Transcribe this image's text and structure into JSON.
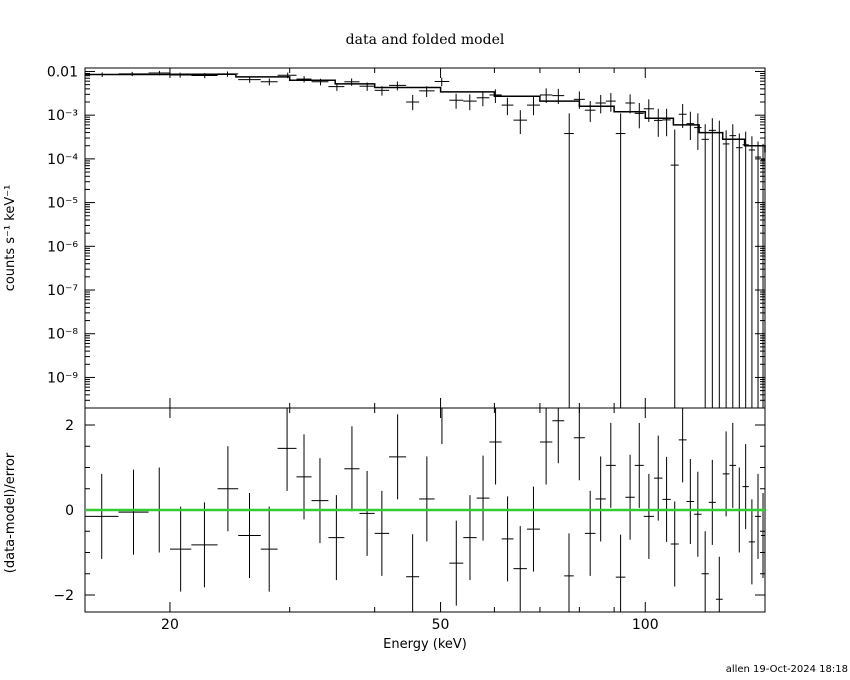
{
  "chart_data": [
    {
      "type": "scatter",
      "panel": "spectrum",
      "title": "data and folded model",
      "ylabel": "counts s⁻¹ keV⁻¹",
      "xlabel": "",
      "xscale": "log",
      "yscale": "log",
      "xlim": [
        15,
        150
      ],
      "ylim": [
        2e-10,
        0.012
      ],
      "y_ticks": [
        {
          "value": 0.01,
          "label": "0.01"
        },
        {
          "value": 0.001,
          "label": "10⁻³"
        },
        {
          "value": 0.0001,
          "label": "10⁻⁴"
        },
        {
          "value": 1e-05,
          "label": "10⁻⁵"
        },
        {
          "value": 1e-06,
          "label": "10⁻⁶"
        },
        {
          "value": 1e-07,
          "label": "10⁻⁷"
        },
        {
          "value": 1e-08,
          "label": "10⁻⁸"
        },
        {
          "value": 1e-09,
          "label": "10⁻⁹"
        }
      ],
      "series": [
        {
          "color": "#000000",
          "style": "crosses",
          "points": [
            {
              "x": 15.9,
              "xlo": 15.0,
              "xhi": 16.8,
              "y": 0.0085,
              "ylo": 0.0075,
              "yhi": 0.0095
            },
            {
              "x": 17.6,
              "xlo": 16.8,
              "xhi": 18.6,
              "y": 0.0088,
              "ylo": 0.0078,
              "yhi": 0.0098
            },
            {
              "x": 19.3,
              "xlo": 18.6,
              "xhi": 20.0,
              "y": 0.0092,
              "ylo": 0.0081,
              "yhi": 0.0103
            },
            {
              "x": 20.7,
              "xlo": 20.0,
              "xhi": 21.5,
              "y": 0.0083,
              "ylo": 0.0072,
              "yhi": 0.0094
            },
            {
              "x": 22.5,
              "xlo": 21.5,
              "xhi": 23.5,
              "y": 0.0081,
              "ylo": 0.007,
              "yhi": 0.0092
            },
            {
              "x": 24.3,
              "xlo": 23.5,
              "xhi": 25.2,
              "y": 0.0088,
              "ylo": 0.0076,
              "yhi": 0.01
            },
            {
              "x": 26.2,
              "xlo": 25.2,
              "xhi": 27.2,
              "y": 0.0065,
              "ylo": 0.0055,
              "yhi": 0.0076
            },
            {
              "x": 28.0,
              "xlo": 27.2,
              "xhi": 28.8,
              "y": 0.0058,
              "ylo": 0.0048,
              "yhi": 0.0069
            },
            {
              "x": 29.8,
              "xlo": 28.8,
              "xhi": 30.7,
              "y": 0.0082,
              "ylo": 0.007,
              "yhi": 0.0094
            },
            {
              "x": 31.5,
              "xlo": 30.7,
              "xhi": 32.3,
              "y": 0.0067,
              "ylo": 0.0056,
              "yhi": 0.0078
            },
            {
              "x": 33.3,
              "xlo": 32.3,
              "xhi": 34.2,
              "y": 0.0058,
              "ylo": 0.0048,
              "yhi": 0.0068
            },
            {
              "x": 35.2,
              "xlo": 34.2,
              "xhi": 36.1,
              "y": 0.0045,
              "ylo": 0.0036,
              "yhi": 0.0054
            },
            {
              "x": 37.0,
              "xlo": 36.1,
              "xhi": 38.0,
              "y": 0.0058,
              "ylo": 0.0047,
              "yhi": 0.0069
            },
            {
              "x": 39.0,
              "xlo": 38.0,
              "xhi": 40.0,
              "y": 0.0046,
              "ylo": 0.0036,
              "yhi": 0.0056
            },
            {
              "x": 41.0,
              "xlo": 40.0,
              "xhi": 42.0,
              "y": 0.0037,
              "ylo": 0.0028,
              "yhi": 0.0046
            },
            {
              "x": 43.2,
              "xlo": 42.0,
              "xhi": 44.5,
              "y": 0.0048,
              "ylo": 0.0037,
              "yhi": 0.0059
            },
            {
              "x": 45.5,
              "xlo": 44.5,
              "xhi": 46.5,
              "y": 0.002,
              "ylo": 0.0013,
              "yhi": 0.0029
            },
            {
              "x": 47.7,
              "xlo": 46.5,
              "xhi": 49.0,
              "y": 0.0036,
              "ylo": 0.0026,
              "yhi": 0.0046
            },
            {
              "x": 50.2,
              "xlo": 49.0,
              "xhi": 51.5,
              "y": 0.0059,
              "ylo": 0.0046,
              "yhi": 0.0072
            },
            {
              "x": 52.7,
              "xlo": 51.5,
              "xhi": 54.0,
              "y": 0.0022,
              "ylo": 0.0014,
              "yhi": 0.0031
            },
            {
              "x": 55.2,
              "xlo": 54.0,
              "xhi": 56.5,
              "y": 0.0021,
              "ylo": 0.0013,
              "yhi": 0.003
            },
            {
              "x": 57.7,
              "xlo": 56.5,
              "xhi": 59.0,
              "y": 0.0025,
              "ylo": 0.0016,
              "yhi": 0.0035
            },
            {
              "x": 60.2,
              "xlo": 59.0,
              "xhi": 61.5,
              "y": 0.0029,
              "ylo": 0.0019,
              "yhi": 0.0039
            },
            {
              "x": 62.7,
              "xlo": 61.5,
              "xhi": 64.0,
              "y": 0.0017,
              "ylo": 0.001,
              "yhi": 0.0025
            },
            {
              "x": 65.5,
              "xlo": 64.0,
              "xhi": 67.0,
              "y": 0.00077,
              "ylo": 0.00037,
              "yhi": 0.0013
            },
            {
              "x": 68.5,
              "xlo": 67.0,
              "xhi": 70.0,
              "y": 0.0017,
              "ylo": 0.001,
              "yhi": 0.0026
            },
            {
              "x": 71.5,
              "xlo": 70.0,
              "xhi": 73.0,
              "y": 0.0029,
              "ylo": 0.0019,
              "yhi": 0.0041
            },
            {
              "x": 74.5,
              "xlo": 73.0,
              "xhi": 76.0,
              "y": 0.0028,
              "ylo": 0.0018,
              "yhi": 0.004
            },
            {
              "x": 77.3,
              "xlo": 76.0,
              "xhi": 78.5,
              "y": 0.00038,
              "ylo": 2e-10,
              "yhi": 0.0011
            },
            {
              "x": 80.0,
              "xlo": 78.5,
              "xhi": 81.5,
              "y": 0.0023,
              "ylo": 0.0014,
              "yhi": 0.0035
            },
            {
              "x": 83.0,
              "xlo": 81.5,
              "xhi": 84.5,
              "y": 0.0013,
              "ylo": 0.0007,
              "yhi": 0.0021
            },
            {
              "x": 86.0,
              "xlo": 84.5,
              "xhi": 87.5,
              "y": 0.0019,
              "ylo": 0.0011,
              "yhi": 0.0029
            },
            {
              "x": 89.0,
              "xlo": 87.5,
              "xhi": 90.5,
              "y": 0.0021,
              "ylo": 0.0012,
              "yhi": 0.0032
            },
            {
              "x": 92.0,
              "xlo": 90.5,
              "xhi": 93.5,
              "y": 0.00038,
              "ylo": 2e-10,
              "yhi": 0.0011
            },
            {
              "x": 95.0,
              "xlo": 93.5,
              "xhi": 96.5,
              "y": 0.0019,
              "ylo": 0.0011,
              "yhi": 0.003
            },
            {
              "x": 98.0,
              "xlo": 96.5,
              "xhi": 99.5,
              "y": 0.0011,
              "ylo": 0.0005,
              "yhi": 0.0019
            },
            {
              "x": 101.2,
              "xlo": 99.5,
              "xhi": 103.0,
              "y": 0.0014,
              "ylo": 0.0007,
              "yhi": 0.0023
            },
            {
              "x": 104.5,
              "xlo": 103.0,
              "xhi": 106.0,
              "y": 0.00076,
              "ylo": 0.00032,
              "yhi": 0.0014
            },
            {
              "x": 107.5,
              "xlo": 106.0,
              "xhi": 109.0,
              "y": 0.00078,
              "ylo": 0.00033,
              "yhi": 0.0014
            },
            {
              "x": 110.5,
              "xlo": 109.0,
              "xhi": 112.0,
              "y": 7.2e-05,
              "ylo": 2e-10,
              "yhi": 0.00047
            },
            {
              "x": 113.5,
              "xlo": 112.0,
              "xhi": 115.0,
              "y": 0.00105,
              "ylo": 0.00051,
              "yhi": 0.0018
            },
            {
              "x": 116.5,
              "xlo": 115.0,
              "xhi": 118.0,
              "y": 0.00064,
              "ylo": 0.00027,
              "yhi": 0.0012
            },
            {
              "x": 119.5,
              "xlo": 118.0,
              "xhi": 121.0,
              "y": 0.00052,
              "ylo": 0.00016,
              "yhi": 0.0011
            },
            {
              "x": 122.5,
              "xlo": 121.0,
              "xhi": 124.0,
              "y": 0.00028,
              "ylo": 2e-10,
              "yhi": 0.00062
            },
            {
              "x": 125.5,
              "xlo": 124.0,
              "xhi": 127.0,
              "y": 0.00045,
              "ylo": 2e-10,
              "yhi": 0.00085
            },
            {
              "x": 128.5,
              "xlo": 127.0,
              "xhi": 130.0,
              "y": 0.0004,
              "ylo": 2e-10,
              "yhi": 0.00075
            },
            {
              "x": 131.5,
              "xlo": 130.0,
              "xhi": 133.0,
              "y": 0.00022,
              "ylo": 2e-10,
              "yhi": 0.00045
            },
            {
              "x": 134.5,
              "xlo": 133.0,
              "xhi": 136.0,
              "y": 0.00034,
              "ylo": 2e-10,
              "yhi": 0.00062
            },
            {
              "x": 137.5,
              "xlo": 136.0,
              "xhi": 139.0,
              "y": 0.00018,
              "ylo": 2e-10,
              "yhi": 0.00038
            },
            {
              "x": 140.5,
              "xlo": 139.0,
              "xhi": 142.0,
              "y": 0.00021,
              "ylo": 2e-10,
              "yhi": 0.00042
            },
            {
              "x": 143.5,
              "xlo": 142.0,
              "xhi": 145.0,
              "y": 0.00016,
              "ylo": 2e-10,
              "yhi": 0.00033
            },
            {
              "x": 146.5,
              "xlo": 145.0,
              "xhi": 148.0,
              "y": 0.00011,
              "ylo": 2e-10,
              "yhi": 0.00025
            },
            {
              "x": 149.0,
              "xlo": 148.0,
              "xhi": 150.0,
              "y": 9.5e-05,
              "ylo": 2e-10,
              "yhi": 0.00022
            }
          ]
        },
        {
          "color": "#000000",
          "style": "step",
          "points": [
            {
              "x": 15.0,
              "y": 0.0085
            },
            {
              "x": 20.0,
              "y": 0.0086
            },
            {
              "x": 25.0,
              "y": 0.0075
            },
            {
              "x": 30.0,
              "y": 0.0063
            },
            {
              "x": 35.0,
              "y": 0.0052
            },
            {
              "x": 40.0,
              "y": 0.0043
            },
            {
              "x": 50.0,
              "y": 0.0034
            },
            {
              "x": 60.0,
              "y": 0.0027
            },
            {
              "x": 70.0,
              "y": 0.0021
            },
            {
              "x": 80.0,
              "y": 0.0016
            },
            {
              "x": 90.0,
              "y": 0.0012
            },
            {
              "x": 100.0,
              "y": 0.00085
            },
            {
              "x": 110.0,
              "y": 0.0006
            },
            {
              "x": 120.0,
              "y": 0.0004
            },
            {
              "x": 130.0,
              "y": 0.00028
            },
            {
              "x": 140.0,
              "y": 0.0002
            },
            {
              "x": 150.0,
              "y": 0.00014
            }
          ]
        }
      ]
    },
    {
      "type": "scatter",
      "panel": "residuals",
      "title": "",
      "xlabel": "Energy (keV)",
      "ylabel": "(data-model)/error",
      "xscale": "log",
      "yscale": "linear",
      "xlim": [
        15,
        150
      ],
      "ylim": [
        -2.4,
        2.4
      ],
      "x_ticks": [
        {
          "value": 20,
          "label": "20"
        },
        {
          "value": 50,
          "label": "50"
        },
        {
          "value": 100,
          "label": "100"
        }
      ],
      "y_ticks": [
        {
          "value": 2,
          "label": "2"
        },
        {
          "value": 0,
          "label": "0"
        },
        {
          "value": -2,
          "label": "−2"
        }
      ],
      "zero_line_color": "#33cc33",
      "points": [
        {
          "xlo": 15.0,
          "xhi": 16.8,
          "y": -0.15
        },
        {
          "xlo": 16.8,
          "xhi": 18.6,
          "y": -0.05
        },
        {
          "xlo": 18.6,
          "xhi": 20.0,
          "y": 0.0
        },
        {
          "xlo": 20.0,
          "xhi": 21.5,
          "y": -0.92
        },
        {
          "xlo": 21.5,
          "xhi": 23.5,
          "y": -0.82
        },
        {
          "xlo": 23.5,
          "xhi": 25.2,
          "y": 0.5
        },
        {
          "xlo": 25.2,
          "xhi": 27.2,
          "y": -0.6
        },
        {
          "xlo": 27.2,
          "xhi": 28.8,
          "y": -0.92
        },
        {
          "xlo": 28.8,
          "xhi": 30.7,
          "y": 1.45
        },
        {
          "xlo": 30.7,
          "xhi": 32.3,
          "y": 0.78
        },
        {
          "xlo": 32.3,
          "xhi": 34.2,
          "y": 0.22
        },
        {
          "xlo": 34.2,
          "xhi": 36.1,
          "y": -0.65
        },
        {
          "xlo": 36.1,
          "xhi": 38.0,
          "y": 0.97
        },
        {
          "xlo": 38.0,
          "xhi": 40.0,
          "y": -0.08
        },
        {
          "xlo": 40.0,
          "xhi": 42.0,
          "y": -0.55
        },
        {
          "xlo": 42.0,
          "xhi": 44.5,
          "y": 1.25
        },
        {
          "xlo": 44.5,
          "xhi": 46.5,
          "y": -1.57
        },
        {
          "xlo": 46.5,
          "xhi": 49.0,
          "y": 0.26
        },
        {
          "xlo": 49.0,
          "xhi": 51.5,
          "y": 2.55
        },
        {
          "xlo": 51.5,
          "xhi": 54.0,
          "y": -1.25
        },
        {
          "xlo": 54.0,
          "xhi": 56.5,
          "y": -0.65
        },
        {
          "xlo": 56.5,
          "xhi": 59.0,
          "y": 0.28
        },
        {
          "xlo": 59.0,
          "xhi": 61.5,
          "y": 1.6
        },
        {
          "xlo": 61.5,
          "xhi": 64.0,
          "y": -0.68
        },
        {
          "xlo": 64.0,
          "xhi": 67.0,
          "y": -1.38
        },
        {
          "xlo": 67.0,
          "xhi": 70.0,
          "y": -0.45
        },
        {
          "xlo": 70.0,
          "xhi": 73.0,
          "y": 1.6
        },
        {
          "xlo": 73.0,
          "xhi": 76.0,
          "y": 2.1
        },
        {
          "xlo": 76.0,
          "xhi": 78.5,
          "y": -1.55
        },
        {
          "xlo": 78.5,
          "xhi": 81.5,
          "y": 1.7
        },
        {
          "xlo": 81.5,
          "xhi": 84.5,
          "y": -0.55
        },
        {
          "xlo": 84.5,
          "xhi": 87.5,
          "y": 0.26
        },
        {
          "xlo": 87.5,
          "xhi": 90.5,
          "y": 1.05
        },
        {
          "xlo": 90.5,
          "xhi": 93.5,
          "y": -1.58
        },
        {
          "xlo": 93.5,
          "xhi": 96.5,
          "y": 0.3
        },
        {
          "xlo": 96.5,
          "xhi": 99.5,
          "y": 1.05
        },
        {
          "xlo": 99.5,
          "xhi": 103.0,
          "y": -0.15
        },
        {
          "xlo": 103.0,
          "xhi": 106.0,
          "y": 0.75
        },
        {
          "xlo": 106.0,
          "xhi": 109.0,
          "y": 0.25
        },
        {
          "xlo": 109.0,
          "xhi": 112.0,
          "y": -0.8
        },
        {
          "xlo": 112.0,
          "xhi": 115.0,
          "y": 1.65
        },
        {
          "xlo": 115.0,
          "xhi": 118.0,
          "y": 0.2
        },
        {
          "xlo": 118.0,
          "xhi": 121.0,
          "y": -0.1
        },
        {
          "xlo": 121.0,
          "xhi": 124.0,
          "y": -1.5
        },
        {
          "xlo": 124.0,
          "xhi": 127.0,
          "y": 0.18
        },
        {
          "xlo": 127.0,
          "xhi": 130.0,
          "y": -2.1
        },
        {
          "xlo": 130.0,
          "xhi": 133.0,
          "y": 0.85
        },
        {
          "xlo": 133.0,
          "xhi": 136.0,
          "y": 1.05
        },
        {
          "xlo": 136.0,
          "xhi": 139.0,
          "y": 0.0
        },
        {
          "xlo": 139.0,
          "xhi": 142.0,
          "y": 0.55
        },
        {
          "xlo": 142.0,
          "xhi": 145.0,
          "y": -0.75
        },
        {
          "xlo": 145.0,
          "xhi": 148.0,
          "y": -0.15
        },
        {
          "xlo": 148.0,
          "xhi": 150.0,
          "y": -0.6
        }
      ]
    }
  ],
  "footer": {
    "signature": "allen 19-Oct-2024 18:18"
  }
}
